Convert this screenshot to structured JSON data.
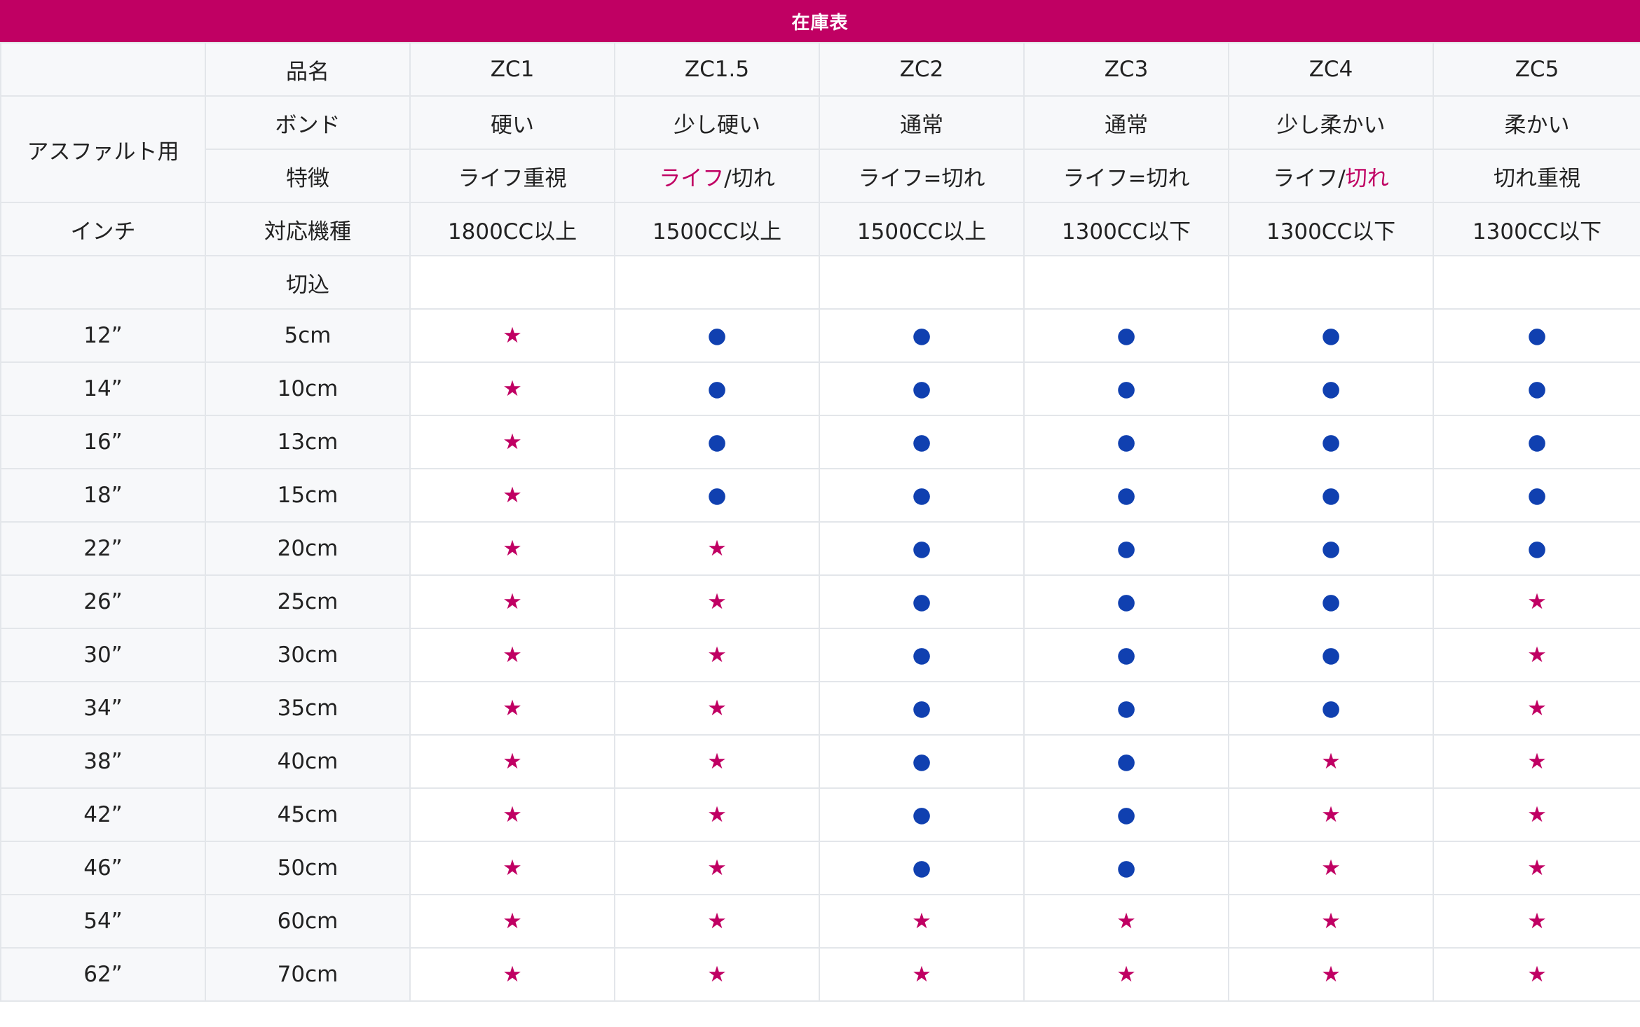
{
  "title": "在庫表",
  "colors": {
    "brand": "#c00063",
    "star": "#c00063",
    "dot": "#1040b0",
    "grid": "#e3e6ea",
    "label_bg": "#f7f8fa"
  },
  "legend": {
    "star": "★",
    "dot": "●"
  },
  "header": {
    "row_product": {
      "col_label": "品名",
      "values": [
        "ZC1",
        "ZC1.5",
        "ZC2",
        "ZC3",
        "ZC4",
        "ZC5"
      ]
    },
    "group_label": "アスファルト用",
    "row_bond": {
      "col_label": "ボンド",
      "values": [
        "硬い",
        "少し硬い",
        "通常",
        "通常",
        "少し柔かい",
        "柔かい"
      ]
    },
    "row_feature": {
      "col_label": "特徴",
      "values": [
        {
          "a": "ライフ重視",
          "sep": "",
          "b": "",
          "hl": ""
        },
        {
          "a": "ライフ",
          "sep": "/",
          "b": "切れ",
          "hl": "a"
        },
        {
          "a": "ライフ",
          "sep": "=",
          "b": "切れ",
          "hl": ""
        },
        {
          "a": "ライフ",
          "sep": "=",
          "b": "切れ",
          "hl": ""
        },
        {
          "a": "ライフ",
          "sep": "/",
          "b": "切れ",
          "hl": "b"
        },
        {
          "a": "切れ重視",
          "sep": "",
          "b": "",
          "hl": ""
        }
      ]
    },
    "inch_label": "インチ",
    "row_machine": {
      "col_label": "対応機種",
      "values": [
        "1800CC以上",
        "1500CC以上",
        "1500CC以上",
        "1300CC以下",
        "1300CC以下",
        "1300CC以下"
      ]
    },
    "row_cut": {
      "col_label": "切込"
    }
  },
  "rows": [
    {
      "inch": "12”",
      "cut": "5cm",
      "marks": [
        "star",
        "dot",
        "dot",
        "dot",
        "dot",
        "dot"
      ]
    },
    {
      "inch": "14”",
      "cut": "10cm",
      "marks": [
        "star",
        "dot",
        "dot",
        "dot",
        "dot",
        "dot"
      ]
    },
    {
      "inch": "16”",
      "cut": "13cm",
      "marks": [
        "star",
        "dot",
        "dot",
        "dot",
        "dot",
        "dot"
      ]
    },
    {
      "inch": "18”",
      "cut": "15cm",
      "marks": [
        "star",
        "dot",
        "dot",
        "dot",
        "dot",
        "dot"
      ]
    },
    {
      "inch": "22”",
      "cut": "20cm",
      "marks": [
        "star",
        "star",
        "dot",
        "dot",
        "dot",
        "dot"
      ]
    },
    {
      "inch": "26”",
      "cut": "25cm",
      "marks": [
        "star",
        "star",
        "dot",
        "dot",
        "dot",
        "star"
      ]
    },
    {
      "inch": "30”",
      "cut": "30cm",
      "marks": [
        "star",
        "star",
        "dot",
        "dot",
        "dot",
        "star"
      ]
    },
    {
      "inch": "34”",
      "cut": "35cm",
      "marks": [
        "star",
        "star",
        "dot",
        "dot",
        "dot",
        "star"
      ]
    },
    {
      "inch": "38”",
      "cut": "40cm",
      "marks": [
        "star",
        "star",
        "dot",
        "dot",
        "star",
        "star"
      ]
    },
    {
      "inch": "42”",
      "cut": "45cm",
      "marks": [
        "star",
        "star",
        "dot",
        "dot",
        "star",
        "star"
      ]
    },
    {
      "inch": "46”",
      "cut": "50cm",
      "marks": [
        "star",
        "star",
        "dot",
        "dot",
        "star",
        "star"
      ]
    },
    {
      "inch": "54”",
      "cut": "60cm",
      "marks": [
        "star",
        "star",
        "star",
        "star",
        "star",
        "star"
      ]
    },
    {
      "inch": "62”",
      "cut": "70cm",
      "marks": [
        "star",
        "star",
        "star",
        "star",
        "star",
        "star"
      ]
    }
  ]
}
